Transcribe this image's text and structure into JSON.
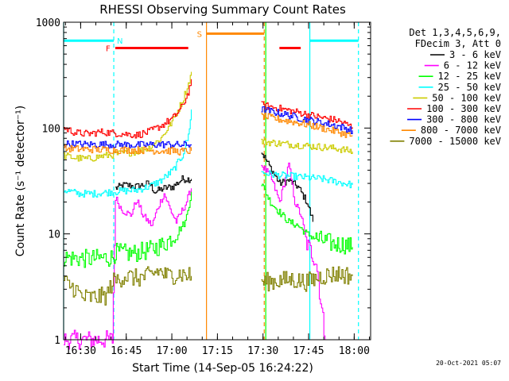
{
  "chart_data": {
    "type": "line",
    "title": "RHESSI Observing Summary Count Rates",
    "xlabel": "Start Time (14-Sep-05 16:24:22)",
    "ylabel": "Count Rate (s⁻¹ detector⁻¹)",
    "yscale": "log",
    "ylim": [
      1,
      1000
    ],
    "xlim_minutes": [
      0,
      101
    ],
    "x_ticks": [
      {
        "label": "16:30",
        "t": 5.6
      },
      {
        "label": "16:45",
        "t": 20.6
      },
      {
        "label": "17:00",
        "t": 35.6
      },
      {
        "label": "17:15",
        "t": 50.6
      },
      {
        "label": "17:30",
        "t": 65.6
      },
      {
        "label": "17:45",
        "t": 80.6
      },
      {
        "label": "18:00",
        "t": 95.6
      }
    ],
    "y_ticks": [
      {
        "label": "1",
        "v": 1
      },
      {
        "label": "10",
        "v": 10
      },
      {
        "label": "100",
        "v": 100
      },
      {
        "label": "1000",
        "v": 1000
      }
    ],
    "legend_header": [
      "Det 1,3,4,5,6,9,",
      "FDecim 3, Att 0"
    ],
    "series": [
      {
        "name": "3 - 6 keV",
        "color": "#000000",
        "segments": [
          [
            [
              17,
              27
            ],
            [
              20,
              29
            ],
            [
              24,
              28
            ],
            [
              28,
              30
            ],
            [
              30,
              25
            ],
            [
              33,
              27
            ],
            [
              36,
              28
            ],
            [
              39,
              33
            ],
            [
              42,
              33
            ]
          ],
          [
            [
              65,
              60
            ],
            [
              68,
              42
            ],
            [
              71,
              30
            ],
            [
              74,
              32
            ],
            [
              77,
              28
            ],
            [
              80,
              20
            ],
            [
              82,
              13
            ]
          ]
        ]
      },
      {
        "name": "6 - 12 keV",
        "color": "#ff00ff",
        "segments": [
          [
            [
              0,
              1
            ],
            [
              16,
              1
            ],
            [
              17,
              22
            ],
            [
              19,
              17
            ],
            [
              22,
              15
            ],
            [
              24,
              21
            ],
            [
              26,
              15
            ],
            [
              29,
              12
            ],
            [
              31,
              18
            ],
            [
              33,
              24
            ],
            [
              35,
              17
            ],
            [
              37,
              13
            ],
            [
              40,
              19
            ],
            [
              42,
              27
            ]
          ],
          [
            [
              65,
              45
            ],
            [
              68,
              35
            ],
            [
              71,
              20
            ],
            [
              74,
              45
            ],
            [
              76,
              20
            ],
            [
              78,
              15
            ],
            [
              80,
              8
            ],
            [
              83,
              5.5
            ],
            [
              86,
              1
            ]
          ]
        ]
      },
      {
        "name": "12 - 25 keV",
        "color": "#00ff00",
        "segments": [
          [
            [
              0,
              6
            ],
            [
              8,
              5.8
            ],
            [
              16,
              6
            ],
            [
              17,
              6.7
            ],
            [
              22,
              6.5
            ],
            [
              28,
              7
            ],
            [
              33,
              8
            ],
            [
              36,
              9.5
            ],
            [
              38,
              11
            ],
            [
              40,
              13
            ],
            [
              42,
              25
            ]
          ],
          [
            [
              65,
              30
            ],
            [
              68,
              20
            ],
            [
              71,
              16
            ],
            [
              74,
              13
            ],
            [
              77,
              12
            ],
            [
              80,
              10
            ],
            [
              83,
              9
            ],
            [
              86,
              8.5
            ],
            [
              89,
              8
            ],
            [
              92,
              8
            ],
            [
              95,
              7.5
            ]
          ]
        ]
      },
      {
        "name": "25 - 50 keV",
        "color": "#00ffff",
        "segments": [
          [
            [
              0,
              26
            ],
            [
              5,
              24
            ],
            [
              10,
              24
            ],
            [
              16,
              25
            ],
            [
              20,
              25.5
            ],
            [
              24,
              26
            ],
            [
              28,
              28
            ],
            [
              32,
              32
            ],
            [
              36,
              40
            ],
            [
              39,
              55
            ],
            [
              41,
              85
            ],
            [
              42,
              150
            ]
          ],
          [
            [
              65,
              38
            ],
            [
              70,
              36
            ],
            [
              75,
              35
            ],
            [
              80,
              34
            ],
            [
              85,
              33
            ],
            [
              90,
              31
            ],
            [
              95,
              29
            ]
          ]
        ]
      },
      {
        "name": "50 - 100 keV",
        "color": "#cccc00",
        "segments": [
          [
            [
              0,
              55
            ],
            [
              4,
              52
            ],
            [
              8,
              51
            ],
            [
              12,
              54
            ],
            [
              16,
              56
            ],
            [
              20,
              58
            ],
            [
              24,
              60
            ],
            [
              28,
              65
            ],
            [
              32,
              80
            ],
            [
              36,
              120
            ],
            [
              39,
              180
            ],
            [
              41,
              260
            ],
            [
              42,
              340
            ]
          ],
          [
            [
              65,
              75
            ],
            [
              70,
              72
            ],
            [
              75,
              70
            ],
            [
              80,
              68
            ],
            [
              85,
              66
            ],
            [
              90,
              64
            ],
            [
              95,
              60
            ]
          ]
        ]
      },
      {
        "name": "100 - 300 keV",
        "color": "#ff0000",
        "segments": [
          [
            [
              0,
              100
            ],
            [
              4,
              90
            ],
            [
              8,
              88
            ],
            [
              12,
              92
            ],
            [
              16,
              90
            ],
            [
              20,
              88
            ],
            [
              24,
              86
            ],
            [
              28,
              92
            ],
            [
              32,
              105
            ],
            [
              36,
              125
            ],
            [
              39,
              160
            ],
            [
              41,
              220
            ],
            [
              42,
              290
            ]
          ],
          [
            [
              65,
              165
            ],
            [
              70,
              155
            ],
            [
              75,
              145
            ],
            [
              80,
              135
            ],
            [
              85,
              125
            ],
            [
              90,
              118
            ],
            [
              95,
              102
            ]
          ]
        ]
      },
      {
        "name": "300 - 800 keV",
        "color": "#0000ff",
        "segments": [
          [
            [
              0,
              71
            ],
            [
              8,
              70
            ],
            [
              16,
              70
            ],
            [
              24,
              69
            ],
            [
              32,
              70
            ],
            [
              36,
              70
            ],
            [
              38,
              69
            ],
            [
              42,
              70
            ]
          ],
          [
            [
              65,
              150
            ],
            [
              70,
              140
            ],
            [
              75,
              130
            ],
            [
              80,
              120
            ],
            [
              85,
              112
            ],
            [
              90,
              105
            ],
            [
              95,
              95
            ]
          ]
        ]
      },
      {
        "name": "800 - 7000 keV",
        "color": "#ff8800",
        "segments": [
          [
            [
              0,
              64
            ],
            [
              8,
              63
            ],
            [
              16,
              62
            ],
            [
              24,
              62
            ],
            [
              32,
              61
            ],
            [
              36,
              61
            ],
            [
              38,
              60
            ],
            [
              42,
              61
            ]
          ],
          [
            [
              65,
              130
            ],
            [
              70,
              122
            ],
            [
              75,
              115
            ],
            [
              80,
              108
            ],
            [
              85,
              100
            ],
            [
              90,
              92
            ],
            [
              95,
              84
            ]
          ]
        ]
      },
      {
        "name": "7000 - 15000 keV",
        "color": "#808000",
        "segments": [
          [
            [
              0,
              3.5
            ],
            [
              4,
              3
            ],
            [
              6,
              2.5
            ],
            [
              10,
              2.5
            ],
            [
              14,
              2.6
            ],
            [
              16,
              3.5
            ],
            [
              20,
              4
            ],
            [
              24,
              3.8
            ],
            [
              28,
              4
            ],
            [
              31,
              4.5
            ],
            [
              34,
              4
            ],
            [
              38,
              4.2
            ],
            [
              42,
              4
            ]
          ],
          [
            [
              65,
              3.5
            ],
            [
              70,
              3.6
            ],
            [
              75,
              3.7
            ],
            [
              80,
              3.5
            ],
            [
              85,
              4
            ],
            [
              90,
              4.2
            ],
            [
              95,
              4
            ]
          ]
        ]
      }
    ],
    "state_bars": [
      {
        "label": "F",
        "color": "#ff0000",
        "t0": 17,
        "t1": 41,
        "v": 570,
        "thick": 3
      },
      {
        "label": "N",
        "color": "#00ffff",
        "t0": 0,
        "t1": 16.5,
        "v": 670,
        "thick": 3
      },
      {
        "label": "S",
        "color": "#ff8800",
        "t0": 47,
        "t1": 66,
        "v": 780,
        "thick": 3
      },
      {
        "label": "",
        "color": "#ff0000",
        "t0": 71,
        "t1": 78,
        "v": 570,
        "thick": 3
      },
      {
        "label": "",
        "color": "#00ffff",
        "t0": 81,
        "t1": 97,
        "v": 670,
        "thick": 3
      }
    ],
    "vlines": [
      {
        "t": 0,
        "color": "#00ffff",
        "style": "solid"
      },
      {
        "t": 16.5,
        "color": "#00ffff",
        "style": "dashed"
      },
      {
        "t": 47,
        "color": "#ff8800",
        "style": "solid"
      },
      {
        "t": 66,
        "color": "#ff8800",
        "style": "dashed"
      },
      {
        "t": 66.5,
        "color": "#00ff00",
        "style": "solid"
      },
      {
        "t": 81,
        "color": "#00ffff",
        "style": "solid"
      },
      {
        "t": 97,
        "color": "#00ffff",
        "style": "dashed"
      }
    ],
    "footer_date": "20-Oct-2021 05:07"
  }
}
